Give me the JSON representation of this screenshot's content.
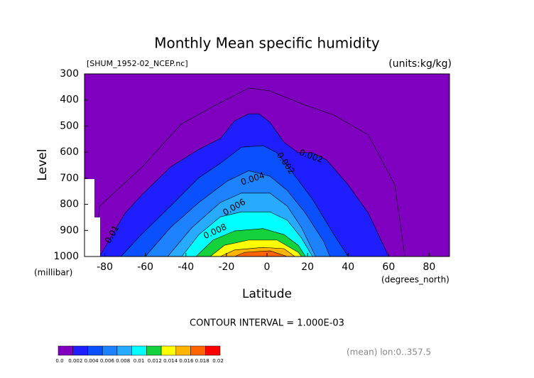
{
  "chart_data": {
    "type": "contour",
    "title": "Monthly Mean specific humidity",
    "subtitle": "[SHUM_1952-02_NCEP.nc]",
    "units": "(units:kg/kg)",
    "y_label": "Level",
    "y_units": "(millibar)",
    "x_label": "Latitude",
    "x_units": "(degrees_north)",
    "note": "CONTOUR INTERVAL = 1.000E-03",
    "footer": "(mean) lon:0..357.5",
    "xlim": [
      -90,
      90
    ],
    "xticks": [
      -80,
      -60,
      -40,
      -20,
      0,
      20,
      40,
      60,
      80
    ],
    "ylim": [
      1000,
      300
    ],
    "yticks": [
      300,
      400,
      500,
      600,
      700,
      800,
      900,
      1000
    ],
    "colorbar": {
      "colors": [
        "#7f00bf",
        "#1e1eff",
        "#0a50ff",
        "#1e82ff",
        "#28aaff",
        "#00ffff",
        "#14d23c",
        "#ffff00",
        "#ffb400",
        "#ff6400",
        "#ff0000"
      ],
      "ticks": [
        {
          "value": 0,
          "label": "0.0"
        },
        0.002,
        0.004,
        0.006,
        0.008,
        0.01,
        0.012,
        0.014,
        0.016,
        0.018,
        0.02
      ]
    },
    "lines": [
      {
        "level": 0.001,
        "lat": [
          -85,
          -82.6,
          -61.6,
          -42.4,
          -26.6,
          -9,
          1.4,
          19,
          33,
          50,
          63,
          68
        ],
        "lev": [
          1000,
          807,
          657,
          493,
          425,
          354,
          365,
          420,
          458,
          534,
          725,
          1000
        ]
      }
    ],
    "bands": [
      {
        "min": 0.002,
        "lat": [
          -82.6,
          -70,
          -62,
          -47.6,
          -33.6,
          -23,
          -16,
          -9,
          -4,
          1.4,
          8.4,
          15.4,
          22.4,
          29.4,
          40,
          50,
          60
        ],
        "lev": [
          1000,
          834,
          766,
          657,
          589,
          548,
          480,
          453,
          453,
          485,
          562,
          602,
          602,
          630,
          725,
          834,
          1000
        ]
      },
      {
        "min": 0.004,
        "lat": [
          -72,
          -62,
          -47.6,
          -33.6,
          -23,
          -12.6,
          -2,
          4.9,
          11.9,
          22.4,
          33,
          40
        ],
        "lev": [
          1000,
          916,
          807,
          698,
          643,
          581,
          575,
          602,
          671,
          780,
          916,
          1000
        ]
      },
      {
        "min": 0.006,
        "lat": [
          -60,
          -47.6,
          -33.6,
          -19.6,
          -9,
          1.4,
          10,
          19,
          28,
          31
        ],
        "lev": [
          1000,
          889,
          793,
          711,
          671,
          692,
          747,
          834,
          943,
          1000
        ]
      },
      {
        "min": 0.008,
        "lat": [
          -49,
          -37,
          -23,
          -12.6,
          1.4,
          10,
          17,
          24
        ],
        "lev": [
          1000,
          889,
          793,
          757,
          757,
          807,
          889,
          1000
        ]
      },
      {
        "min": 0.01,
        "lat": [
          -42,
          -33.6,
          -23,
          -12.6,
          1.4,
          10,
          17,
          22.4
        ],
        "lev": [
          1000,
          916,
          848,
          829,
          829,
          861,
          929,
          1000
        ]
      },
      {
        "min": 0.012,
        "lat": [
          -35,
          -26.6,
          -16,
          -2,
          8.4,
          15.4,
          19
        ],
        "lev": [
          1000,
          937,
          902,
          893,
          916,
          957,
          1000
        ]
      },
      {
        "min": 0.014,
        "lat": [
          -28,
          -21,
          -9,
          5,
          15.4,
          17
        ],
        "lev": [
          1000,
          957,
          937,
          937,
          984,
          1000
        ]
      },
      {
        "min": 0.016,
        "lat": [
          -23,
          -16,
          -2,
          8.4,
          13.7
        ],
        "lev": [
          1000,
          975,
          965,
          970,
          1000
        ]
      },
      {
        "min": 0.018,
        "lat": [
          -16,
          -11,
          1.4,
          10
        ],
        "lev": [
          1000,
          984,
          978,
          1000
        ]
      }
    ],
    "contour_labels": [
      0.002,
      0.004,
      0.006,
      0.008,
      0.01,
      0.002
    ]
  }
}
